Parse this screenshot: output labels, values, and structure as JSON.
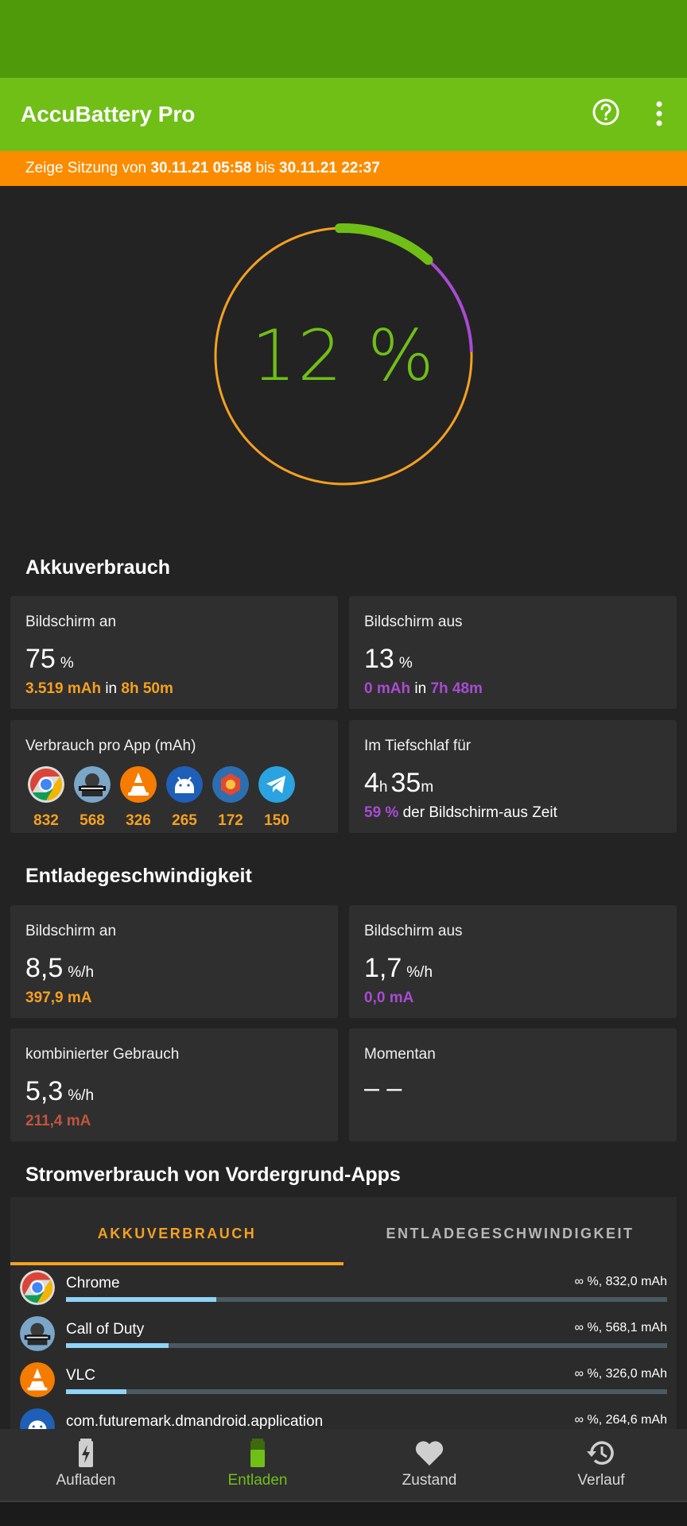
{
  "app": {
    "title": "AccuBattery Pro"
  },
  "colors": {
    "accent": "#6fbf17",
    "orange": "#f5a022",
    "purple": "#a94bd3",
    "session_bg": "#fb8c00"
  },
  "icons": {
    "help": "help-circle-icon",
    "more": "more-vert-icon"
  },
  "session": {
    "prefix": "Zeige Sitzung von ",
    "start": "30.11.21 05:58",
    "mid": " bis ",
    "end": "30.11.21 22:37"
  },
  "gauge": {
    "percent_text": "12 %",
    "green_fraction": 0.12,
    "purple_fraction": 0.13
  },
  "akku": {
    "title": "Akkuverbrauch",
    "screen_on": {
      "label": "Bildschirm an",
      "value": "75",
      "unit": "%",
      "mah": "3.519 mAh",
      "in": " in ",
      "time": "8h 50m"
    },
    "screen_off": {
      "label": "Bildschirm aus",
      "value": "13",
      "unit": "%",
      "mah": "0 mAh",
      "in": " in ",
      "time": "7h 48m"
    },
    "per_app": {
      "label": "Verbrauch pro App (mAh)",
      "apps": [
        {
          "icon": "chrome-icon",
          "value": "832"
        },
        {
          "icon": "call-of-duty-icon",
          "value": "568"
        },
        {
          "icon": "vlc-icon",
          "value": "326"
        },
        {
          "icon": "android-icon",
          "value": "265"
        },
        {
          "icon": "app-icon",
          "value": "172"
        },
        {
          "icon": "telegram-icon",
          "value": "150"
        }
      ]
    },
    "deep_sleep": {
      "label": "Im Tiefschlaf für",
      "hours": "4",
      "h": "h",
      "minutes": "35",
      "m": "m",
      "pct": "59 %",
      "rest": " der Bildschirm-aus Zeit"
    }
  },
  "discharge": {
    "title": "Entladegeschwindigkeit",
    "screen_on": {
      "label": "Bildschirm an",
      "value": "8,5",
      "unit": "%/h",
      "ma": "397,9 mA"
    },
    "screen_off": {
      "label": "Bildschirm aus",
      "value": "1,7",
      "unit": "%/h",
      "ma": "0,0 mA"
    },
    "combined": {
      "label": "kombinierter Gebrauch",
      "value": "5,3",
      "unit": "%/h",
      "ma": "211,4 mA"
    },
    "current": {
      "label": "Momentan",
      "value": "– –"
    }
  },
  "foreground": {
    "title": "Stromverbrauch von Vordergrund-Apps",
    "tabs": [
      {
        "label": "AKKUVERBRAUCH"
      },
      {
        "label": "ENTLADEGESCHWINDIGKEIT"
      }
    ],
    "rows": [
      {
        "icon": "chrome-icon",
        "name": "Chrome",
        "value": "∞ %, 832,0 mAh",
        "fraction": 0.25
      },
      {
        "icon": "call-of-duty-icon",
        "name": "Call of Duty",
        "value": "∞ %, 568,1 mAh",
        "fraction": 0.17
      },
      {
        "icon": "vlc-icon",
        "name": "VLC",
        "value": "∞ %, 326,0 mAh",
        "fraction": 0.1
      },
      {
        "icon": "android-icon",
        "name": "com.futuremark.dmandroid.application",
        "value": "∞ %, 264,6 mAh",
        "fraction": 0.08
      }
    ]
  },
  "nav": [
    {
      "label": "Aufladen",
      "icon": "battery-charging-icon",
      "active": false
    },
    {
      "label": "Entladen",
      "icon": "battery-icon",
      "active": true
    },
    {
      "label": "Zustand",
      "icon": "heart-icon",
      "active": false
    },
    {
      "label": "Verlauf",
      "icon": "history-icon",
      "active": false
    }
  ]
}
